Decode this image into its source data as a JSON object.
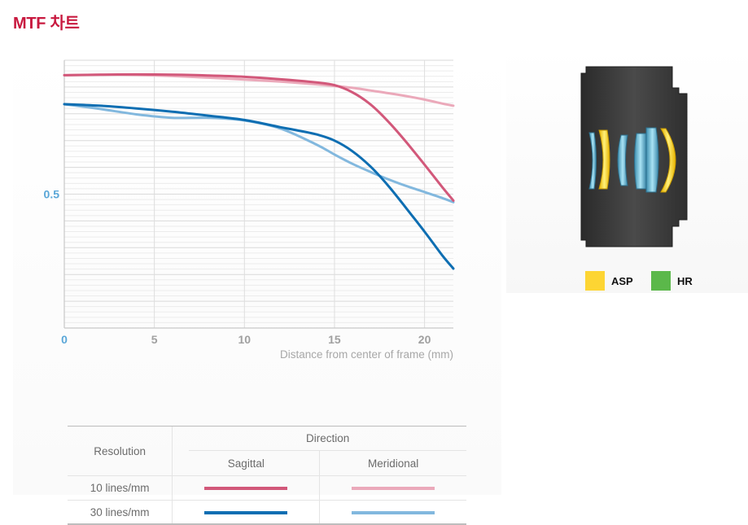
{
  "page": {
    "title": "MTF 차트"
  },
  "chart_data": {
    "type": "line",
    "x_ticks": [
      "0",
      "5",
      "10",
      "15",
      "20"
    ],
    "y_ticks": [
      "0.5"
    ],
    "xlabel": "Distance from center of frame (mm)",
    "ylabel": "",
    "xlim": [
      0,
      21.6
    ],
    "ylim": [
      0,
      1
    ],
    "grid": true,
    "series": [
      {
        "name": "10 lines/mm Sagittal",
        "color": "#d2587a",
        "x": [
          0,
          2,
          4,
          6,
          8,
          10,
          12,
          14,
          15,
          16,
          17,
          18,
          19,
          20,
          21,
          21.6
        ],
        "y": [
          0.944,
          0.946,
          0.947,
          0.946,
          0.943,
          0.938,
          0.929,
          0.917,
          0.907,
          0.88,
          0.835,
          0.77,
          0.693,
          0.61,
          0.525,
          0.476
        ]
      },
      {
        "name": "10 lines/mm Meridional",
        "color": "#eba9ba",
        "x": [
          0,
          2,
          4,
          6,
          8,
          10,
          12,
          14,
          15,
          16,
          17,
          18,
          19,
          20,
          21,
          21.6
        ],
        "y": [
          0.944,
          0.946,
          0.945,
          0.941,
          0.935,
          0.928,
          0.92,
          0.91,
          0.904,
          0.897,
          0.887,
          0.877,
          0.866,
          0.853,
          0.838,
          0.83
        ]
      },
      {
        "name": "30 lines/mm Sagittal",
        "color": "#0e6eb2",
        "x": [
          0,
          2,
          4,
          6,
          8,
          10,
          12,
          13,
          14,
          15,
          16,
          17,
          18,
          19,
          20,
          21,
          21.6
        ],
        "y": [
          0.836,
          0.83,
          0.82,
          0.808,
          0.793,
          0.777,
          0.75,
          0.737,
          0.723,
          0.7,
          0.66,
          0.603,
          0.53,
          0.446,
          0.36,
          0.27,
          0.222
        ]
      },
      {
        "name": "30 lines/mm Meridional",
        "color": "#82b8de",
        "x": [
          0,
          2,
          4,
          6,
          8,
          10,
          12,
          14,
          15,
          16,
          17,
          18,
          19,
          20,
          21,
          21.6
        ],
        "y": [
          0.836,
          0.818,
          0.798,
          0.785,
          0.785,
          0.775,
          0.745,
          0.685,
          0.648,
          0.613,
          0.583,
          0.555,
          0.53,
          0.508,
          0.485,
          0.47
        ]
      }
    ]
  },
  "legend_table": {
    "resolution_header": "Resolution",
    "direction_header": "Direction",
    "sagittal_label": "Sagittal",
    "meridional_label": "Meridional",
    "rows": [
      {
        "label": "10 lines/mm",
        "sagittal_color": "#d2587a",
        "meridional_color": "#eba9ba"
      },
      {
        "label": "30 lines/mm",
        "sagittal_color": "#0e6eb2",
        "meridional_color": "#82b8de"
      }
    ]
  },
  "lens_legend": {
    "items": [
      {
        "label": "ASP",
        "color": "#fdd533"
      },
      {
        "label": "HR",
        "color": "#5bb84a"
      }
    ]
  }
}
